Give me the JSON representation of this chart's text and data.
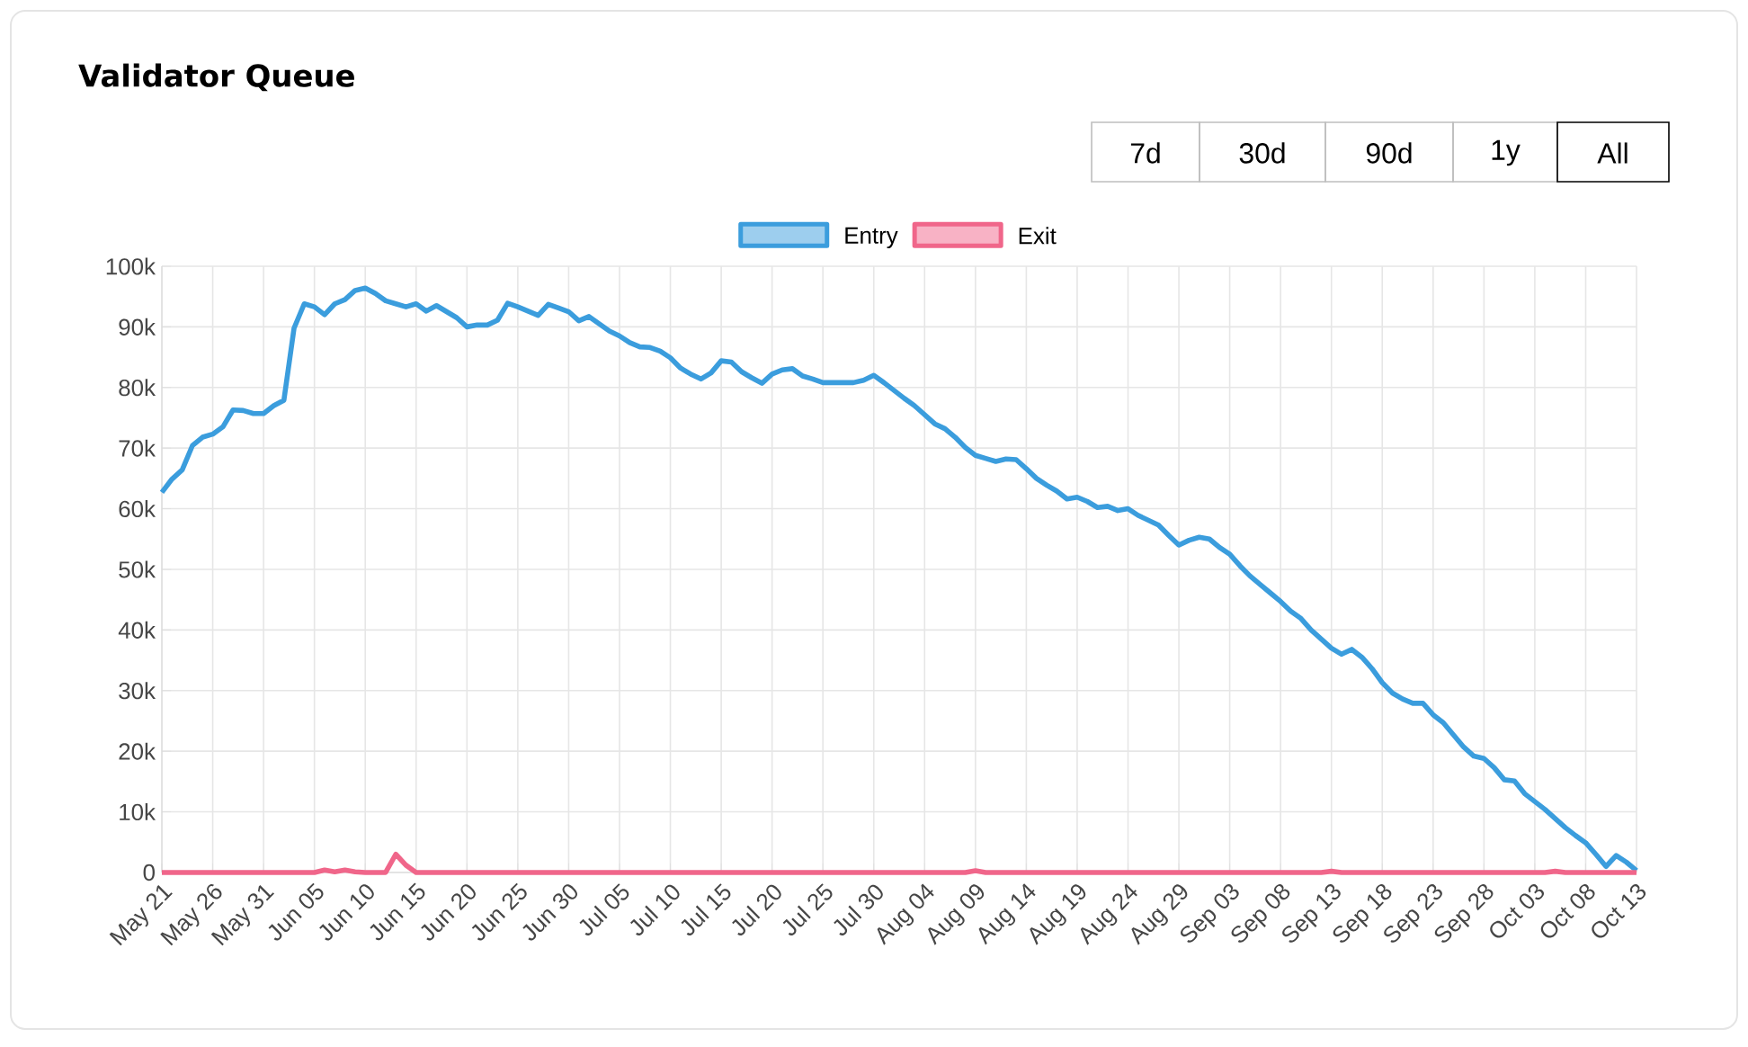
{
  "chart_data": {
    "type": "line",
    "title": "Validator Queue",
    "categories": [
      "May 21",
      null,
      null,
      null,
      null,
      "May 26",
      null,
      null,
      null,
      null,
      "May 31",
      null,
      null,
      null,
      null,
      "Jun 05",
      null,
      null,
      null,
      null,
      "Jun 10",
      null,
      null,
      null,
      null,
      "Jun 15",
      null,
      null,
      null,
      null,
      "Jun 20",
      null,
      null,
      null,
      null,
      "Jun 25",
      null,
      null,
      null,
      null,
      "Jun 30",
      null,
      null,
      null,
      null,
      "Jul 05",
      null,
      null,
      null,
      null,
      "Jul 10",
      null,
      null,
      null,
      null,
      "Jul 15",
      null,
      null,
      null,
      null,
      "Jul 20",
      null,
      null,
      null,
      null,
      "Jul 25",
      null,
      null,
      null,
      null,
      "Jul 30",
      null,
      null,
      null,
      null,
      "Aug 04",
      null,
      null,
      null,
      null,
      "Aug 09",
      null,
      null,
      null,
      null,
      "Aug 14",
      null,
      null,
      null,
      null,
      "Aug 19",
      null,
      null,
      null,
      null,
      "Aug 24",
      null,
      null,
      null,
      null,
      "Aug 29",
      null,
      null,
      null,
      null,
      "Sep 03",
      null,
      null,
      null,
      null,
      "Sep 08",
      null,
      null,
      null,
      null,
      "Sep 13",
      null,
      null,
      null,
      null,
      "Sep 18",
      null,
      null,
      null,
      null,
      "Sep 23",
      null,
      null,
      null,
      null,
      "Sep 28",
      null,
      null,
      null,
      null,
      "Oct 03",
      null,
      null,
      null,
      null,
      "Oct 08",
      null,
      null,
      null,
      null,
      "Oct 13"
    ],
    "series": [
      {
        "name": "Entry",
        "color": "#3b9ddd",
        "values": [
          62700,
          64900,
          66400,
          70400,
          71800,
          72300,
          73500,
          76300,
          76200,
          75700,
          75700,
          77000,
          77900,
          89800,
          93800,
          93300,
          92000,
          93800,
          94500,
          96000,
          96400,
          95500,
          94300,
          93800,
          93300,
          93800,
          92600,
          93500,
          92500,
          91500,
          90000,
          90300,
          90300,
          91100,
          93900,
          93300,
          92600,
          91900,
          93700,
          93100,
          92500,
          91000,
          91700,
          90500,
          89300,
          88500,
          87400,
          86700,
          86600,
          86000,
          84900,
          83200,
          82200,
          81400,
          82400,
          84400,
          84200,
          82600,
          81600,
          80700,
          82200,
          82900,
          83100,
          81900,
          81400,
          80800,
          80800,
          80800,
          80800,
          81200,
          82000,
          80800,
          79500,
          78200,
          77000,
          75500,
          74000,
          73200,
          71800,
          70100,
          68800,
          68300,
          67800,
          68200,
          68100,
          66600,
          65000,
          63900,
          62900,
          61600,
          61900,
          61200,
          60200,
          60400,
          59700,
          60000,
          58900,
          58100,
          57300,
          55600,
          54000,
          54800,
          55300,
          55000,
          53600,
          52500,
          50600,
          48900,
          47500,
          46100,
          44700,
          43100,
          41900,
          40000,
          38500,
          37000,
          36000,
          36800,
          35500,
          33600,
          31300,
          29600,
          28600,
          27900,
          27900,
          26000,
          24700,
          22700,
          20700,
          19200,
          18800,
          17300,
          15300,
          15100,
          13000,
          11700,
          10400,
          8900,
          7400,
          6100,
          4900,
          3000,
          1000,
          2800,
          1700,
          300
        ]
      },
      {
        "name": "Exit",
        "color": "#f0668a",
        "values": [
          0,
          0,
          0,
          0,
          0,
          0,
          0,
          0,
          0,
          0,
          0,
          0,
          0,
          0,
          0,
          0,
          400,
          100,
          400,
          100,
          0,
          0,
          0,
          3000,
          1200,
          0,
          0,
          0,
          0,
          0,
          0,
          0,
          0,
          0,
          0,
          0,
          0,
          0,
          0,
          0,
          0,
          0,
          0,
          0,
          0,
          0,
          0,
          0,
          0,
          0,
          0,
          0,
          0,
          0,
          0,
          0,
          0,
          0,
          0,
          0,
          0,
          0,
          0,
          0,
          0,
          0,
          0,
          0,
          0,
          0,
          0,
          0,
          0,
          0,
          0,
          0,
          0,
          0,
          0,
          0,
          300,
          0,
          0,
          0,
          0,
          0,
          0,
          0,
          0,
          0,
          0,
          0,
          0,
          0,
          0,
          0,
          0,
          0,
          0,
          0,
          0,
          0,
          0,
          0,
          0,
          0,
          0,
          0,
          0,
          0,
          0,
          0,
          0,
          0,
          0,
          200,
          0,
          0,
          0,
          0,
          0,
          0,
          0,
          0,
          0,
          0,
          0,
          0,
          0,
          0,
          0,
          0,
          0,
          0,
          0,
          0,
          0,
          200,
          0,
          0,
          0,
          0,
          0,
          0,
          0,
          0
        ]
      }
    ],
    "ylim": [
      0,
      100000
    ],
    "yticks": [
      0,
      {
        "value": 10000,
        "label": "10k"
      },
      {
        "value": 20000,
        "label": "20k"
      },
      {
        "value": 30000,
        "label": "30k"
      },
      {
        "value": 40000,
        "label": "40k"
      },
      {
        "value": 50000,
        "label": "50k"
      },
      {
        "value": 60000,
        "label": "60k"
      },
      {
        "value": 70000,
        "label": "70k"
      },
      {
        "value": 80000,
        "label": "80k"
      },
      {
        "value": 90000,
        "label": "90k"
      },
      {
        "value": 100000,
        "label": "100k"
      }
    ],
    "grid": true,
    "legend": "top",
    "marker": "none",
    "line_style": "solid",
    "annotations": [
      "7d",
      "30d",
      "90d",
      "1y",
      "All"
    ]
  }
}
